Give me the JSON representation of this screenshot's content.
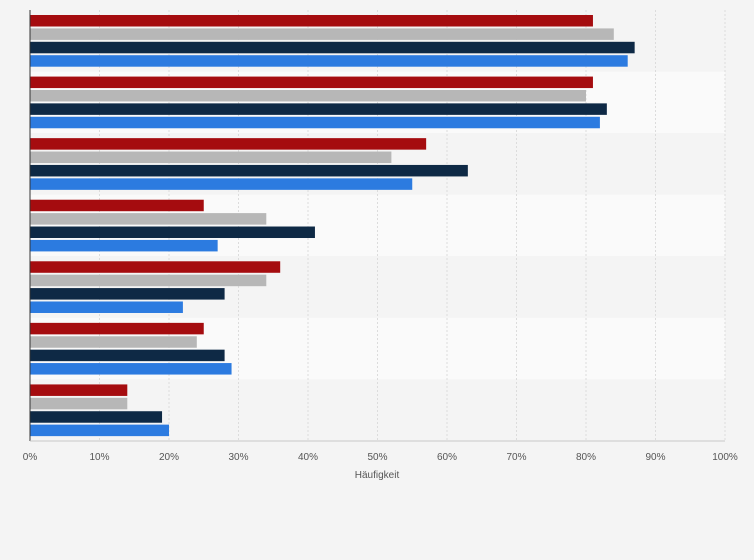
{
  "chart_data": {
    "type": "bar",
    "orientation": "horizontal",
    "title": "",
    "xlabel": "Häufigkeit",
    "ylabel": "",
    "xlim": [
      0,
      100
    ],
    "x_ticks": [
      "0%",
      "10%",
      "20%",
      "30%",
      "40%",
      "50%",
      "60%",
      "70%",
      "80%",
      "90%",
      "100%"
    ],
    "grid": true,
    "legend": "none",
    "categories": [
      "",
      "",
      "",
      "",
      "",
      "",
      ""
    ],
    "series": [
      {
        "color": "#a50c0f",
        "values": [
          81,
          81,
          57,
          25,
          36,
          25,
          14
        ]
      },
      {
        "color": "#b7b7b7",
        "values": [
          84,
          80,
          52,
          34,
          34,
          24,
          14
        ]
      },
      {
        "color": "#0e2945",
        "values": [
          87,
          83,
          63,
          41,
          28,
          28,
          19
        ]
      },
      {
        "color": "#2c7be0",
        "values": [
          86,
          82,
          55,
          27,
          22,
          29,
          20
        ]
      }
    ],
    "band_colors": [
      "#f4f4f4",
      "#fafafa"
    ],
    "grid_color": "#dcdcdc",
    "axis_color": "#333333"
  }
}
